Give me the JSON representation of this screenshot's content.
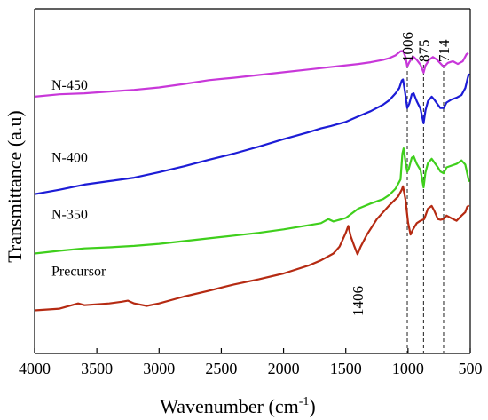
{
  "chart_data": {
    "type": "line",
    "xlabel": "Wavenumber (cm",
    "xlabel_superscript": "-1",
    "xlabel_suffix": ")",
    "ylabel": "Transmittance (a.u)",
    "xlim": [
      4000,
      500
    ],
    "x_reversed": true,
    "x_ticks": [
      "4000",
      "3500",
      "3000",
      "2500",
      "2000",
      "1500",
      "1000",
      "500"
    ],
    "y_ticks_shown": false,
    "grid": false,
    "legend": "none",
    "series": [
      {
        "name": "N-450",
        "color": "#c837d9",
        "label_at": [
          4000,
          0.765
        ],
        "points": [
          [
            4000,
            0.745
          ],
          [
            3800,
            0.752
          ],
          [
            3600,
            0.755
          ],
          [
            3400,
            0.76
          ],
          [
            3200,
            0.765
          ],
          [
            3000,
            0.772
          ],
          [
            2800,
            0.782
          ],
          [
            2600,
            0.793
          ],
          [
            2400,
            0.8
          ],
          [
            2200,
            0.808
          ],
          [
            2000,
            0.816
          ],
          [
            1800,
            0.824
          ],
          [
            1600,
            0.832
          ],
          [
            1400,
            0.84
          ],
          [
            1300,
            0.845
          ],
          [
            1200,
            0.852
          ],
          [
            1150,
            0.857
          ],
          [
            1100,
            0.865
          ],
          [
            1060,
            0.877
          ],
          [
            1040,
            0.878
          ],
          [
            1020,
            0.86
          ],
          [
            1006,
            0.832
          ],
          [
            990,
            0.845
          ],
          [
            960,
            0.862
          ],
          [
            930,
            0.852
          ],
          [
            900,
            0.838
          ],
          [
            875,
            0.815
          ],
          [
            860,
            0.835
          ],
          [
            830,
            0.852
          ],
          [
            800,
            0.86
          ],
          [
            770,
            0.853
          ],
          [
            740,
            0.842
          ],
          [
            714,
            0.832
          ],
          [
            680,
            0.843
          ],
          [
            640,
            0.848
          ],
          [
            600,
            0.84
          ],
          [
            560,
            0.848
          ],
          [
            530,
            0.868
          ],
          [
            515,
            0.872
          ]
        ]
      },
      {
        "name": "N-400",
        "color": "#1c1cd6",
        "label_at": [
          4000,
          0.555
        ],
        "points": [
          [
            4000,
            0.462
          ],
          [
            3800,
            0.475
          ],
          [
            3600,
            0.49
          ],
          [
            3400,
            0.5
          ],
          [
            3200,
            0.51
          ],
          [
            3000,
            0.526
          ],
          [
            2800,
            0.543
          ],
          [
            2600,
            0.562
          ],
          [
            2400,
            0.58
          ],
          [
            2200,
            0.6
          ],
          [
            2000,
            0.622
          ],
          [
            1800,
            0.642
          ],
          [
            1700,
            0.653
          ],
          [
            1620,
            0.66
          ],
          [
            1500,
            0.672
          ],
          [
            1400,
            0.688
          ],
          [
            1300,
            0.703
          ],
          [
            1200,
            0.722
          ],
          [
            1150,
            0.735
          ],
          [
            1100,
            0.755
          ],
          [
            1070,
            0.77
          ],
          [
            1050,
            0.792
          ],
          [
            1040,
            0.795
          ],
          [
            1025,
            0.762
          ],
          [
            1006,
            0.712
          ],
          [
            990,
            0.725
          ],
          [
            970,
            0.752
          ],
          [
            955,
            0.755
          ],
          [
            930,
            0.732
          ],
          [
            900,
            0.71
          ],
          [
            875,
            0.668
          ],
          [
            860,
            0.705
          ],
          [
            840,
            0.732
          ],
          [
            810,
            0.745
          ],
          [
            790,
            0.737
          ],
          [
            760,
            0.722
          ],
          [
            740,
            0.712
          ],
          [
            714,
            0.712
          ],
          [
            690,
            0.728
          ],
          [
            650,
            0.737
          ],
          [
            610,
            0.742
          ],
          [
            570,
            0.75
          ],
          [
            540,
            0.77
          ],
          [
            520,
            0.8
          ],
          [
            510,
            0.812
          ]
        ]
      },
      {
        "name": "N-350",
        "color": "#3fcf1c",
        "label_at": [
          4000,
          0.39
        ],
        "points": [
          [
            4000,
            0.29
          ],
          [
            3800,
            0.298
          ],
          [
            3600,
            0.305
          ],
          [
            3400,
            0.308
          ],
          [
            3200,
            0.312
          ],
          [
            3000,
            0.318
          ],
          [
            2800,
            0.326
          ],
          [
            2600,
            0.334
          ],
          [
            2400,
            0.342
          ],
          [
            2200,
            0.35
          ],
          [
            2000,
            0.36
          ],
          [
            1800,
            0.372
          ],
          [
            1700,
            0.378
          ],
          [
            1640,
            0.39
          ],
          [
            1600,
            0.383
          ],
          [
            1500,
            0.393
          ],
          [
            1400,
            0.42
          ],
          [
            1300,
            0.435
          ],
          [
            1200,
            0.448
          ],
          [
            1150,
            0.46
          ],
          [
            1100,
            0.478
          ],
          [
            1060,
            0.505
          ],
          [
            1045,
            0.58
          ],
          [
            1035,
            0.595
          ],
          [
            1020,
            0.555
          ],
          [
            1006,
            0.527
          ],
          [
            995,
            0.535
          ],
          [
            970,
            0.568
          ],
          [
            955,
            0.572
          ],
          [
            930,
            0.55
          ],
          [
            900,
            0.532
          ],
          [
            875,
            0.482
          ],
          [
            860,
            0.525
          ],
          [
            840,
            0.552
          ],
          [
            810,
            0.565
          ],
          [
            790,
            0.555
          ],
          [
            760,
            0.54
          ],
          [
            740,
            0.528
          ],
          [
            714,
            0.523
          ],
          [
            690,
            0.54
          ],
          [
            650,
            0.545
          ],
          [
            610,
            0.55
          ],
          [
            570,
            0.56
          ],
          [
            540,
            0.548
          ],
          [
            520,
            0.515
          ],
          [
            510,
            0.498
          ]
        ]
      },
      {
        "name": "Precursor",
        "color": "#b52a12",
        "label_at": [
          4000,
          0.225
        ],
        "points": [
          [
            4000,
            0.125
          ],
          [
            3800,
            0.13
          ],
          [
            3650,
            0.145
          ],
          [
            3600,
            0.14
          ],
          [
            3400,
            0.145
          ],
          [
            3300,
            0.15
          ],
          [
            3250,
            0.153
          ],
          [
            3200,
            0.145
          ],
          [
            3100,
            0.138
          ],
          [
            3000,
            0.145
          ],
          [
            2800,
            0.165
          ],
          [
            2600,
            0.182
          ],
          [
            2400,
            0.2
          ],
          [
            2200,
            0.215
          ],
          [
            2000,
            0.232
          ],
          [
            1800,
            0.255
          ],
          [
            1700,
            0.27
          ],
          [
            1600,
            0.29
          ],
          [
            1550,
            0.31
          ],
          [
            1500,
            0.35
          ],
          [
            1480,
            0.37
          ],
          [
            1460,
            0.34
          ],
          [
            1430,
            0.31
          ],
          [
            1406,
            0.288
          ],
          [
            1380,
            0.31
          ],
          [
            1330,
            0.345
          ],
          [
            1250,
            0.39
          ],
          [
            1150,
            0.43
          ],
          [
            1080,
            0.455
          ],
          [
            1050,
            0.475
          ],
          [
            1040,
            0.485
          ],
          [
            1020,
            0.445
          ],
          [
            1000,
            0.38
          ],
          [
            980,
            0.345
          ],
          [
            960,
            0.36
          ],
          [
            930,
            0.378
          ],
          [
            900,
            0.385
          ],
          [
            870,
            0.39
          ],
          [
            840,
            0.42
          ],
          [
            810,
            0.428
          ],
          [
            790,
            0.415
          ],
          [
            760,
            0.39
          ],
          [
            740,
            0.388
          ],
          [
            714,
            0.39
          ],
          [
            690,
            0.4
          ],
          [
            650,
            0.392
          ],
          [
            610,
            0.385
          ],
          [
            570,
            0.4
          ],
          [
            540,
            0.41
          ],
          [
            525,
            0.425
          ],
          [
            510,
            0.43
          ]
        ]
      }
    ],
    "reference_lines": [
      {
        "x": 1006,
        "label": "1006"
      },
      {
        "x": 875,
        "label": "875"
      },
      {
        "x": 714,
        "label": "714"
      }
    ],
    "annotations": [
      {
        "x": 1406,
        "label": "1406"
      }
    ]
  }
}
